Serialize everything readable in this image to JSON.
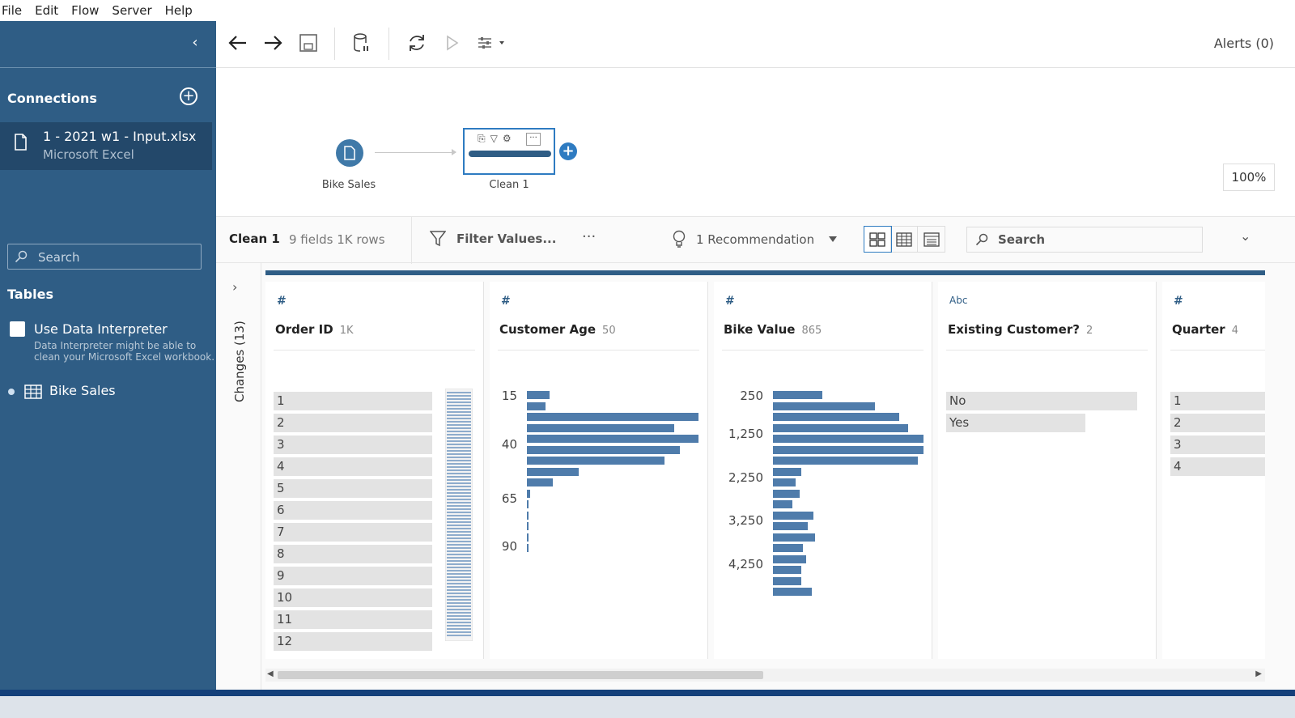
{
  "menu": {
    "file": "File",
    "edit": "Edit",
    "flow": "Flow",
    "server": "Server",
    "help": "Help"
  },
  "sidebar": {
    "connections_title": "Connections",
    "connection": {
      "name": "1 - 2021 w1 - Input.xlsx",
      "type": "Microsoft Excel"
    },
    "search_placeholder": "Search",
    "tables_title": "Tables",
    "data_interpreter_label": "Use Data Interpreter",
    "data_interpreter_help": "Data Interpreter might be able to clean your Microsoft Excel workbook.",
    "table_name": "Bike Sales"
  },
  "toolbar": {
    "alerts": "Alerts (0)"
  },
  "flow": {
    "input_label": "Bike Sales",
    "clean_label": "Clean 1",
    "zoom": "100%"
  },
  "profile_header": {
    "step": "Clean 1",
    "meta": "9 fields  1K rows",
    "filter": "Filter Values...",
    "more": "···",
    "recommendation": "1 Recommendation",
    "search_placeholder": "Search"
  },
  "changes_label": "Changes (13)",
  "cards": {
    "order_id": {
      "type": "#",
      "title": "Order ID",
      "count": "1K",
      "values": [
        "1",
        "2",
        "3",
        "4",
        "5",
        "6",
        "7",
        "8",
        "9",
        "10",
        "11",
        "12"
      ]
    },
    "customer_age": {
      "type": "#",
      "title": "Customer Age",
      "count": "50",
      "ticks": [
        "15",
        "40",
        "65",
        "90"
      ],
      "bars": [
        0.13,
        0.11,
        1.0,
        0.86,
        1.0,
        0.89,
        0.8,
        0.3,
        0.15,
        0.02,
        0.01,
        0.01,
        0.01,
        0.01,
        0.01
      ]
    },
    "bike_value": {
      "type": "#",
      "title": "Bike Value",
      "count": "865",
      "ticks": [
        "250",
        "1,250",
        "2,250",
        "3,250",
        "4,250"
      ],
      "bars": [
        0.33,
        0.68,
        0.84,
        0.9,
        1.0,
        1.0,
        0.96,
        0.19,
        0.15,
        0.18,
        0.13,
        0.27,
        0.23,
        0.28,
        0.2,
        0.22,
        0.19,
        0.19,
        0.26
      ]
    },
    "existing_customer": {
      "type": "Abc",
      "title": "Existing Customer?",
      "count": "2",
      "values": [
        "No",
        "Yes"
      ],
      "fractions": [
        1.0,
        0.73
      ]
    },
    "quarter": {
      "type": "#",
      "title": "Quarter",
      "count": "4",
      "values": [
        "1",
        "2",
        "3",
        "4"
      ]
    }
  }
}
